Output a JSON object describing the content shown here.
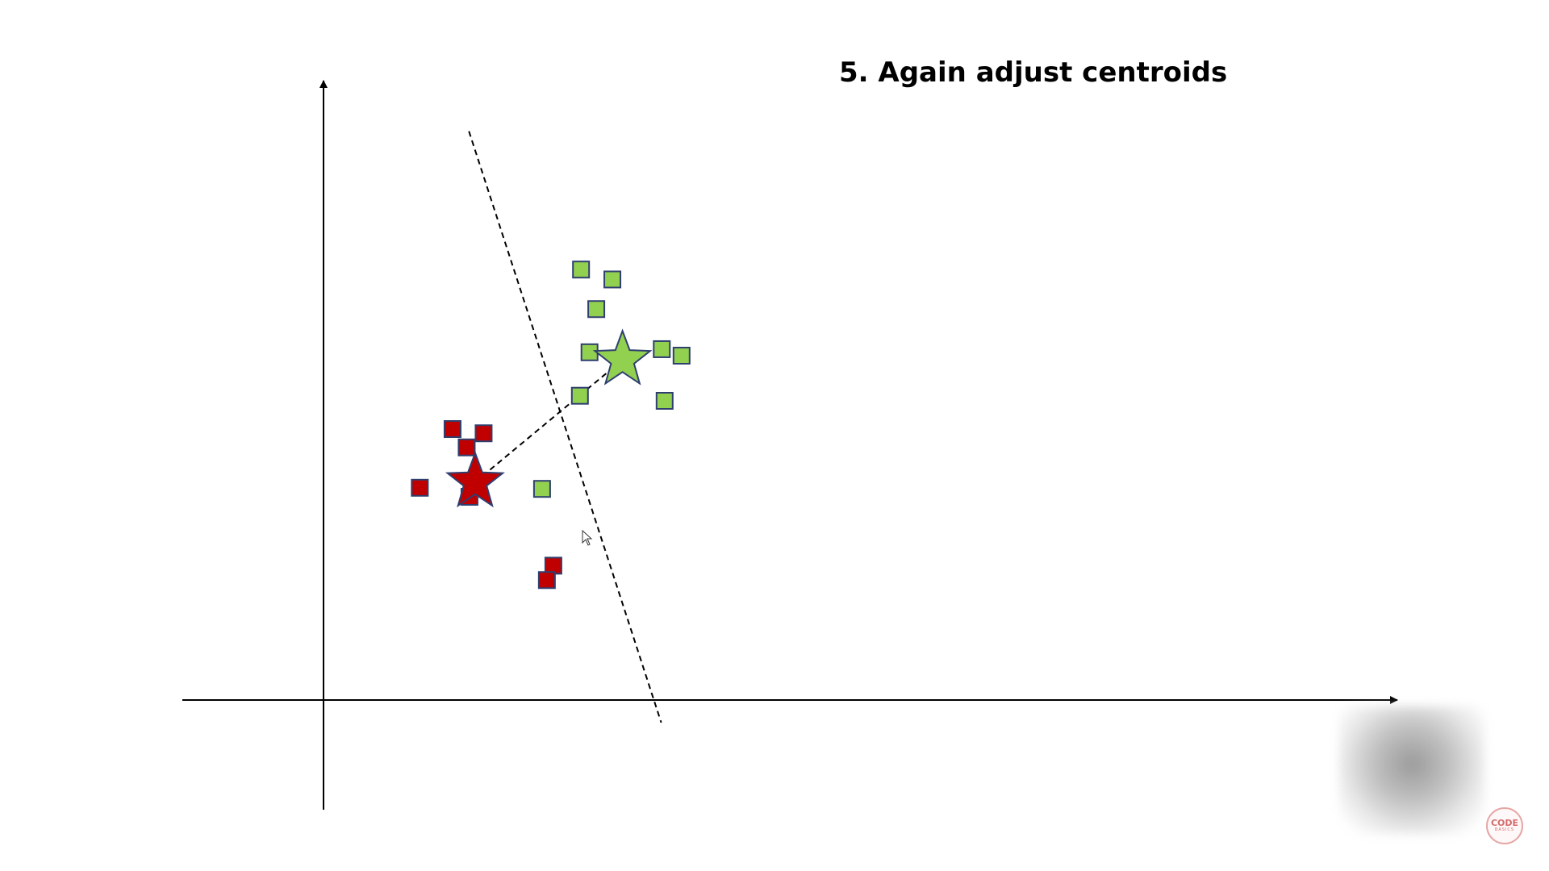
{
  "slide": {
    "title": "5. Again adjust centroids"
  },
  "diagram": {
    "cluster_red": {
      "color": "#c00000",
      "stroke": "#2f3f6f",
      "points": [
        [
          3.41,
          7.52
        ],
        [
          4.57,
          9.6
        ],
        [
          5.07,
          8.95
        ],
        [
          5.67,
          9.45
        ],
        [
          5.17,
          7.2
        ],
        [
          8.14,
          4.76
        ],
        [
          7.91,
          4.25
        ]
      ],
      "centroid": [
        5.37,
        7.72
      ]
    },
    "cluster_green": {
      "color": "#92d050",
      "stroke": "#2f3f6f",
      "points": [
        [
          9.12,
          15.25
        ],
        [
          10.23,
          14.9
        ],
        [
          9.66,
          13.85
        ],
        [
          9.42,
          12.32
        ],
        [
          9.08,
          10.78
        ],
        [
          11.98,
          12.43
        ],
        [
          12.68,
          12.2
        ],
        [
          12.08,
          10.6
        ],
        [
          7.74,
          7.48
        ]
      ],
      "centroid": [
        10.59,
        12.05
      ]
    },
    "boundary_line": [
      [
        5.15,
        20.15
      ],
      [
        11.96,
        -0.8
      ]
    ],
    "centroid_connector": [
      [
        5.37,
        7.72
      ],
      [
        10.59,
        12.05
      ]
    ],
    "logo_text": "CODE BASICS"
  }
}
